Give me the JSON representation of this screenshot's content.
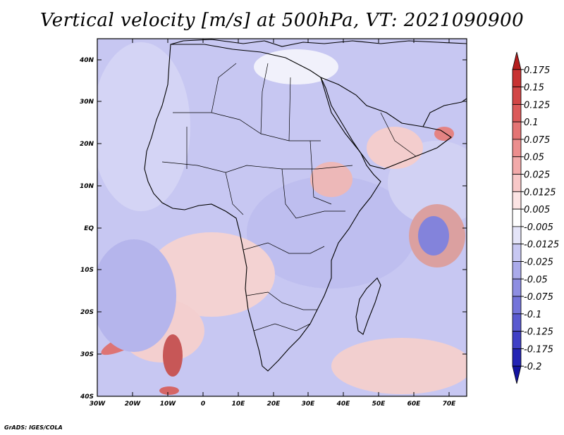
{
  "title": "Vertical velocity [m/s] at 500hPa, VT: 2021090900",
  "credit": "GrADS: IGES/COLA",
  "lat_labels": [
    "40N",
    "30N",
    "20N",
    "10N",
    "EQ",
    "10S",
    "20S",
    "30S",
    "40S"
  ],
  "lon_labels": [
    "30W",
    "20W",
    "10W",
    "0",
    "10E",
    "20E",
    "30E",
    "40E",
    "50E",
    "60E",
    "70E"
  ],
  "colorbar": {
    "labels": [
      "0.175",
      "0.15",
      "0.125",
      "0.1",
      "0.075",
      "0.05",
      "0.025",
      "0.0125",
      "0.005",
      "-0.005",
      "-0.0125",
      "-0.025",
      "-0.05",
      "-0.075",
      "-0.1",
      "-0.125",
      "-0.175",
      "-0.2"
    ],
    "colors": [
      "#b41e1e",
      "#c83232",
      "#d24646",
      "#dc5a5a",
      "#e47474",
      "#ec8e8e",
      "#f2aaaa",
      "#f8c8c8",
      "#fce4e4",
      "#ffffff",
      "#e4e4f8",
      "#c8c8f2",
      "#aaaaea",
      "#8e8ee2",
      "#7474da",
      "#5a5ad0",
      "#4040c6",
      "#2424b4",
      "#1414a0"
    ]
  }
}
